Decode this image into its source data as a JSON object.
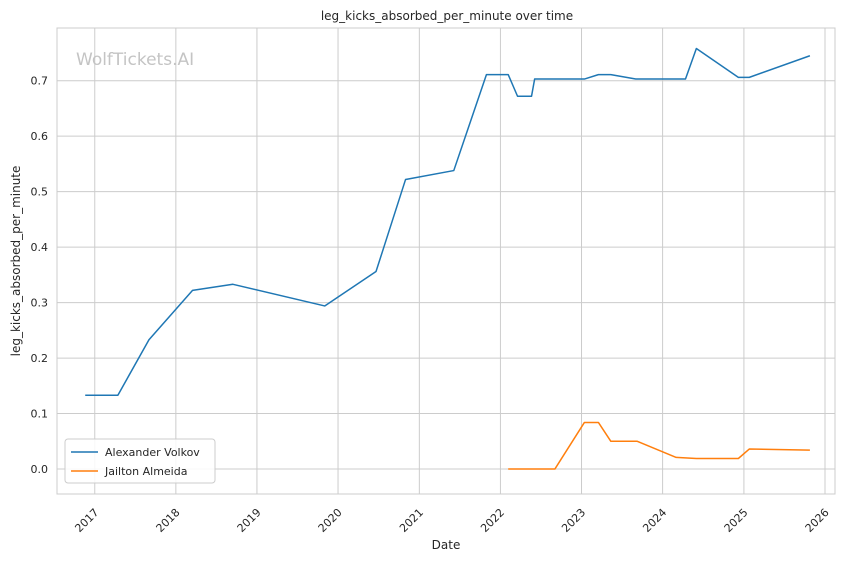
{
  "chart_data": {
    "type": "line",
    "title": "leg_kicks_absorbed_per_minute over time",
    "xlabel": "Date",
    "ylabel": "leg_kicks_absorbed_per_minute",
    "watermark": "WolfTickets.AI",
    "x_ticks": [
      "2017",
      "2018",
      "2019",
      "2020",
      "2021",
      "2022",
      "2023",
      "2024",
      "2025",
      "2026"
    ],
    "y_ticks": [
      "0.0",
      "0.1",
      "0.2",
      "0.3",
      "0.4",
      "0.5",
      "0.6",
      "0.7"
    ],
    "xlim": [
      "2016-07-15",
      "2026-02-15"
    ],
    "ylim": [
      -0.045,
      0.795
    ],
    "grid": true,
    "legend_position": "lower-left",
    "series": [
      {
        "name": "Alexander Volkov",
        "color": "#1f77b4",
        "points": [
          [
            "2016-11-19",
            0.133
          ],
          [
            "2017-04-15",
            0.133
          ],
          [
            "2017-09-02",
            0.233
          ],
          [
            "2018-03-17",
            0.322
          ],
          [
            "2018-09-15",
            0.333
          ],
          [
            "2019-11-02",
            0.294
          ],
          [
            "2020-06-20",
            0.356
          ],
          [
            "2020-10-31",
            0.522
          ],
          [
            "2021-06-05",
            0.538
          ],
          [
            "2021-10-30",
            0.711
          ],
          [
            "2022-02-05",
            0.711
          ],
          [
            "2022-03-19",
            0.672
          ],
          [
            "2022-05-21",
            0.672
          ],
          [
            "2022-06-04",
            0.703
          ],
          [
            "2023-01-14",
            0.703
          ],
          [
            "2023-03-18",
            0.711
          ],
          [
            "2023-05-13",
            0.711
          ],
          [
            "2023-09-02",
            0.703
          ],
          [
            "2024-04-13",
            0.703
          ],
          [
            "2024-06-01",
            0.758
          ],
          [
            "2024-12-07",
            0.706
          ],
          [
            "2025-01-25",
            0.706
          ],
          [
            "2025-10-25",
            0.745
          ]
        ]
      },
      {
        "name": "Jailton Almeida",
        "color": "#ff7f0e",
        "points": [
          [
            "2022-02-05",
            0.0
          ],
          [
            "2022-09-03",
            0.0
          ],
          [
            "2023-01-14",
            0.084
          ],
          [
            "2023-03-18",
            0.084
          ],
          [
            "2023-05-13",
            0.05
          ],
          [
            "2023-09-09",
            0.05
          ],
          [
            "2024-03-02",
            0.021
          ],
          [
            "2024-06-01",
            0.019
          ],
          [
            "2024-12-07",
            0.019
          ],
          [
            "2025-01-25",
            0.036
          ],
          [
            "2025-10-25",
            0.034
          ]
        ]
      }
    ]
  }
}
